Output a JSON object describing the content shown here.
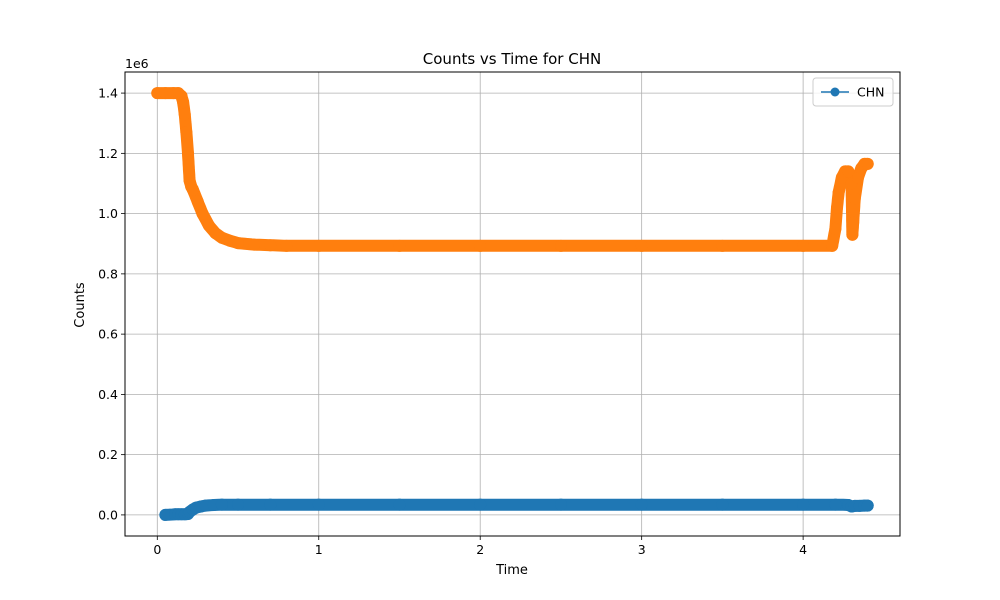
{
  "chart_data": {
    "type": "scatter",
    "title": "Counts vs Time for CHN",
    "xlabel": "Time",
    "ylabel": "Counts",
    "y_offset_label": "1e6",
    "xlim": [
      -0.2,
      4.6
    ],
    "ylim": [
      -0.07,
      1.47
    ],
    "x_ticks": [
      0,
      1,
      2,
      3,
      4
    ],
    "x_tick_labels": [
      "0",
      "1",
      "2",
      "3",
      "4"
    ],
    "y_ticks": [
      0.0,
      0.2,
      0.4,
      0.6,
      0.8,
      1.0,
      1.2,
      1.4
    ],
    "y_tick_labels": [
      "0.0",
      "0.2",
      "0.4",
      "0.6",
      "0.8",
      "1.0",
      "1.2",
      "1.4"
    ],
    "grid": true,
    "legend": {
      "position": "top-right",
      "entries": [
        "CHN"
      ]
    },
    "series": [
      {
        "name": "CHN",
        "color": "#1f77b4",
        "marker": "circle",
        "x": [
          0.05,
          0.11,
          0.13,
          0.15,
          0.17,
          0.19,
          0.2,
          0.22,
          0.24,
          0.27,
          0.3,
          0.35,
          0.4,
          0.5,
          0.7,
          1.0,
          1.5,
          2.0,
          2.5,
          3.0,
          3.5,
          4.0,
          4.2,
          4.28,
          4.3,
          4.32,
          4.35,
          4.38,
          4.4
        ],
        "y": [
          0.0,
          0.002,
          0.002,
          0.002,
          0.002,
          0.003,
          0.01,
          0.018,
          0.024,
          0.028,
          0.031,
          0.033,
          0.034,
          0.034,
          0.034,
          0.034,
          0.034,
          0.034,
          0.034,
          0.034,
          0.034,
          0.034,
          0.034,
          0.033,
          0.028,
          0.03,
          0.03,
          0.031,
          0.031
        ]
      },
      {
        "color": "#ff7f0e",
        "marker": "circle",
        "x": [
          0.0,
          0.05,
          0.1,
          0.13,
          0.15,
          0.16,
          0.17,
          0.18,
          0.19,
          0.2,
          0.21,
          0.22,
          0.25,
          0.28,
          0.32,
          0.36,
          0.4,
          0.45,
          0.5,
          0.6,
          0.7,
          0.8,
          1.0,
          1.5,
          2.0,
          2.5,
          3.0,
          3.5,
          4.0,
          4.18,
          4.2,
          4.21,
          4.22,
          4.24,
          4.26,
          4.28,
          4.3,
          4.305,
          4.31,
          4.32,
          4.34,
          4.36,
          4.38,
          4.4
        ],
        "y": [
          1.4,
          1.4,
          1.4,
          1.4,
          1.39,
          1.37,
          1.33,
          1.27,
          1.2,
          1.11,
          1.09,
          1.08,
          1.04,
          1.0,
          0.96,
          0.935,
          0.92,
          0.91,
          0.902,
          0.897,
          0.895,
          0.893,
          0.893,
          0.893,
          0.893,
          0.893,
          0.893,
          0.893,
          0.893,
          0.893,
          0.95,
          1.02,
          1.07,
          1.12,
          1.14,
          1.14,
          1.1,
          0.93,
          0.97,
          1.05,
          1.12,
          1.15,
          1.165,
          1.165
        ]
      }
    ]
  }
}
